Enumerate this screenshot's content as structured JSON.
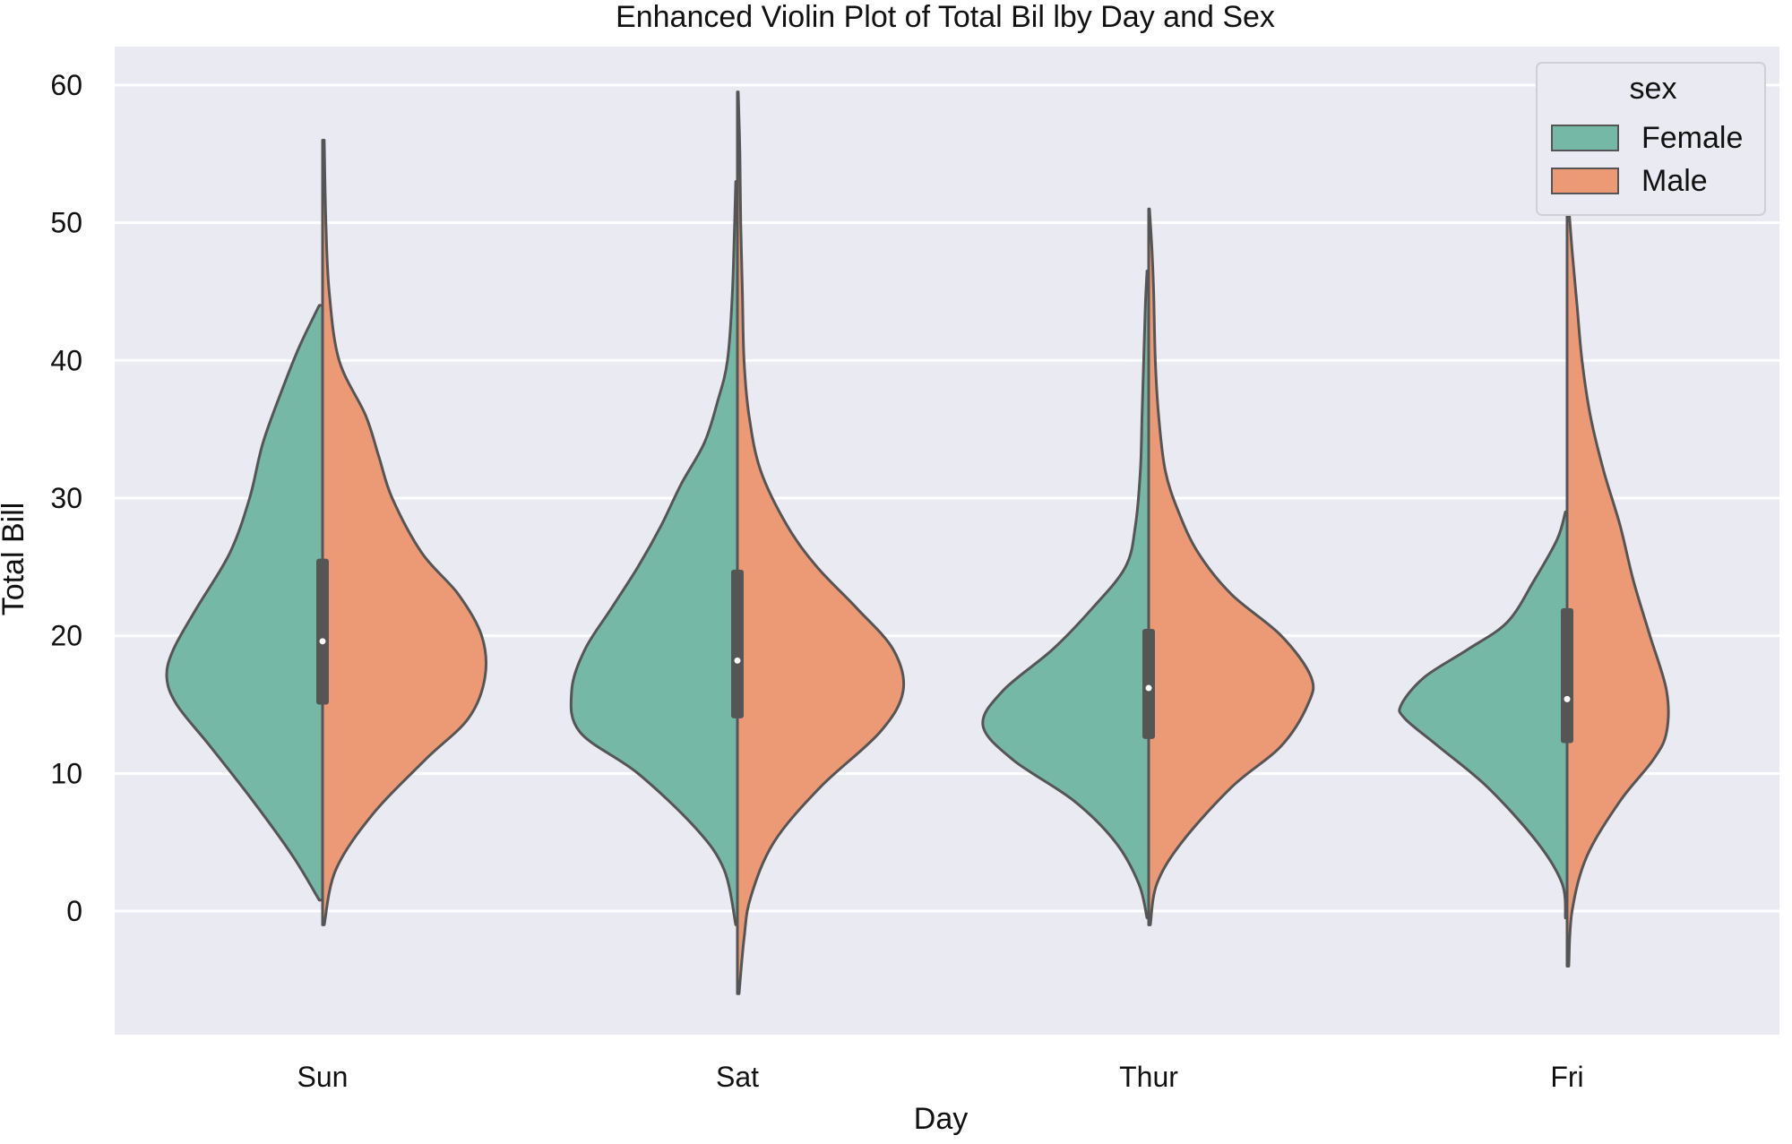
{
  "chart_data": {
    "type": "violin",
    "title": "Enhanced Violin Plot of Total Bil lby Day and Sex",
    "xlabel": "Day",
    "ylabel": "Total Bill",
    "categories": [
      "Sun",
      "Sat",
      "Thur",
      "Fri"
    ],
    "yticks": [
      0,
      10,
      20,
      30,
      40,
      50,
      60
    ],
    "ylim": [
      -9,
      63
    ],
    "grid": true,
    "legend": {
      "title": "sex",
      "placement": "top-right",
      "entries": [
        {
          "label": "Female",
          "color": "#76b8a6"
        },
        {
          "label": "Male",
          "color": "#ec9a76"
        }
      ]
    },
    "colors": {
      "background": "#eaeaf2",
      "grid": "#ffffff",
      "outline": "#555555",
      "box": "#555555"
    },
    "violins": [
      {
        "day": "Sun",
        "female": {
          "profile": [
            [
              0.8,
              0.02
            ],
            [
              4,
              0.18
            ],
            [
              8,
              0.42
            ],
            [
              12,
              0.68
            ],
            [
              15,
              0.88
            ],
            [
              17,
              0.94
            ],
            [
              19,
              0.9
            ],
            [
              22,
              0.76
            ],
            [
              26,
              0.56
            ],
            [
              30,
              0.44
            ],
            [
              34,
              0.36
            ],
            [
              38,
              0.24
            ],
            [
              41,
              0.14
            ],
            [
              44,
              0.02
            ]
          ]
        },
        "male": {
          "profile": [
            [
              -1,
              0.01
            ],
            [
              3,
              0.08
            ],
            [
              7,
              0.3
            ],
            [
              11,
              0.62
            ],
            [
              14,
              0.88
            ],
            [
              17,
              0.98
            ],
            [
              20,
              0.96
            ],
            [
              23,
              0.82
            ],
            [
              26,
              0.6
            ],
            [
              30,
              0.42
            ],
            [
              33,
              0.34
            ],
            [
              36,
              0.26
            ],
            [
              40,
              0.1
            ],
            [
              45,
              0.04
            ],
            [
              50,
              0.02
            ],
            [
              56,
              0.01
            ]
          ]
        },
        "box": {
          "q1": 15,
          "median": 19.6,
          "q3": 25.6,
          "whisker_low": 0.8,
          "whisker_high": 44
        }
      },
      {
        "day": "Sat",
        "female": {
          "profile": [
            [
              -1,
              0.01
            ],
            [
              3,
              0.08
            ],
            [
              6,
              0.25
            ],
            [
              10,
              0.6
            ],
            [
              13,
              0.95
            ],
            [
              16,
              1.0
            ],
            [
              19,
              0.92
            ],
            [
              22,
              0.76
            ],
            [
              25,
              0.6
            ],
            [
              28,
              0.46
            ],
            [
              31,
              0.34
            ],
            [
              34,
              0.2
            ],
            [
              37,
              0.12
            ],
            [
              40,
              0.06
            ],
            [
              45,
              0.03
            ],
            [
              53,
              0.01
            ]
          ]
        },
        "male": {
          "profile": [
            [
              -6,
              0.01
            ],
            [
              -2,
              0.04
            ],
            [
              1,
              0.08
            ],
            [
              5,
              0.22
            ],
            [
              9,
              0.5
            ],
            [
              13,
              0.86
            ],
            [
              16,
              1.0
            ],
            [
              19,
              0.94
            ],
            [
              22,
              0.72
            ],
            [
              25,
              0.48
            ],
            [
              28,
              0.3
            ],
            [
              32,
              0.14
            ],
            [
              36,
              0.07
            ],
            [
              40,
              0.04
            ],
            [
              45,
              0.03
            ],
            [
              50,
              0.02
            ],
            [
              55,
              0.015
            ],
            [
              59.5,
              0.005
            ]
          ]
        },
        "box": {
          "q1": 14,
          "median": 18.2,
          "q3": 24.8,
          "whisker_low": 3,
          "whisker_high": 39.5
        }
      },
      {
        "day": "Thur",
        "female": {
          "profile": [
            [
              -0.5,
              0.01
            ],
            [
              2,
              0.06
            ],
            [
              5,
              0.2
            ],
            [
              8,
              0.45
            ],
            [
              11,
              0.82
            ],
            [
              13.5,
              1.0
            ],
            [
              16,
              0.88
            ],
            [
              19,
              0.58
            ],
            [
              22,
              0.34
            ],
            [
              25,
              0.14
            ],
            [
              28,
              0.08
            ],
            [
              32,
              0.05
            ],
            [
              36,
              0.04
            ],
            [
              40,
              0.03
            ],
            [
              44,
              0.02
            ],
            [
              46.5,
              0.01
            ]
          ]
        },
        "male": {
          "profile": [
            [
              -1,
              0.01
            ],
            [
              2,
              0.05
            ],
            [
              5,
              0.2
            ],
            [
              9,
              0.5
            ],
            [
              12,
              0.8
            ],
            [
              15,
              0.96
            ],
            [
              17,
              0.98
            ],
            [
              20,
              0.8
            ],
            [
              23,
              0.5
            ],
            [
              26,
              0.3
            ],
            [
              29,
              0.18
            ],
            [
              32,
              0.1
            ],
            [
              36,
              0.06
            ],
            [
              40,
              0.04
            ],
            [
              45,
              0.03
            ],
            [
              48,
              0.02
            ],
            [
              51,
              0.005
            ]
          ]
        },
        "box": {
          "q1": 12.5,
          "median": 16.2,
          "q3": 20.5,
          "whisker_low": 7.5,
          "whisker_high": 29
        }
      },
      {
        "day": "Fri",
        "female": {
          "profile": [
            [
              -0.5,
              0.01
            ],
            [
              2,
              0.03
            ],
            [
              5,
              0.18
            ],
            [
              9,
              0.48
            ],
            [
              12,
              0.78
            ],
            [
              14,
              0.98
            ],
            [
              15,
              1.0
            ],
            [
              17,
              0.86
            ],
            [
              19,
              0.6
            ],
            [
              21,
              0.36
            ],
            [
              24,
              0.2
            ],
            [
              27,
              0.06
            ],
            [
              29,
              0.01
            ]
          ]
        },
        "male": {
          "profile": [
            [
              -4,
              0.01
            ],
            [
              0,
              0.03
            ],
            [
              4,
              0.12
            ],
            [
              8,
              0.32
            ],
            [
              11,
              0.52
            ],
            [
              13,
              0.6
            ],
            [
              16,
              0.6
            ],
            [
              20,
              0.5
            ],
            [
              24,
              0.4
            ],
            [
              28,
              0.32
            ],
            [
              32,
              0.22
            ],
            [
              36,
              0.14
            ],
            [
              40,
              0.09
            ],
            [
              44,
              0.06
            ],
            [
              48,
              0.03
            ],
            [
              52,
              0.005
            ]
          ]
        },
        "box": {
          "q1": 12.2,
          "median": 15.4,
          "q3": 22,
          "whisker_low": 6,
          "whisker_high": 28
        }
      }
    ]
  }
}
